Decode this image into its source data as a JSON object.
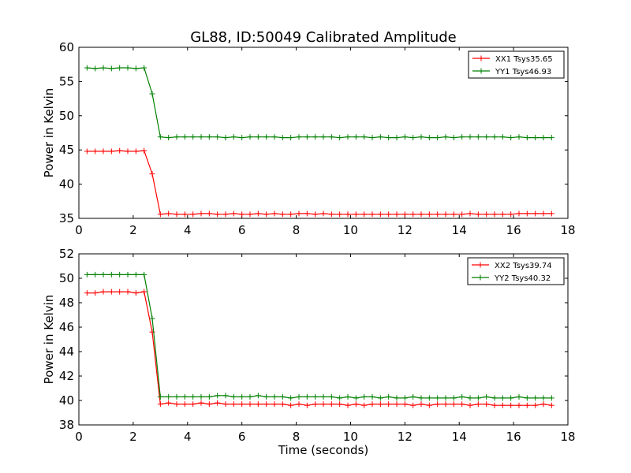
{
  "title": "GL88, ID:50049 Calibrated Amplitude",
  "chart_data": [
    {
      "type": "line",
      "ylabel": "Power in Kelvin",
      "xlabel": "",
      "xlim": [
        0,
        18
      ],
      "ylim": [
        35,
        60
      ],
      "xticks": [
        0,
        2,
        4,
        6,
        8,
        10,
        12,
        14,
        16,
        18
      ],
      "yticks": [
        35,
        40,
        45,
        50,
        55,
        60
      ],
      "legend_position": "top-right",
      "x": [
        0.3,
        0.6,
        0.9,
        1.2,
        1.5,
        1.8,
        2.1,
        2.4,
        2.7,
        3.0,
        3.3,
        3.6,
        3.9,
        4.2,
        4.5,
        4.8,
        5.1,
        5.4,
        5.7,
        6.0,
        6.3,
        6.6,
        6.9,
        7.2,
        7.5,
        7.8,
        8.1,
        8.4,
        8.7,
        9.0,
        9.3,
        9.6,
        9.9,
        10.2,
        10.5,
        10.8,
        11.1,
        11.4,
        11.7,
        12.0,
        12.3,
        12.6,
        12.9,
        13.2,
        13.5,
        13.8,
        14.1,
        14.4,
        14.7,
        15.0,
        15.3,
        15.6,
        15.9,
        16.2,
        16.5,
        16.8,
        17.1,
        17.4
      ],
      "series": [
        {
          "name": "XX1 Tsys35.65",
          "color": "#ff0000",
          "values": [
            44.8,
            44.8,
            44.8,
            44.8,
            44.9,
            44.8,
            44.8,
            44.9,
            41.5,
            35.6,
            35.7,
            35.6,
            35.6,
            35.6,
            35.7,
            35.7,
            35.6,
            35.6,
            35.7,
            35.6,
            35.6,
            35.7,
            35.6,
            35.7,
            35.6,
            35.6,
            35.7,
            35.7,
            35.6,
            35.7,
            35.6,
            35.6,
            35.6,
            35.6,
            35.6,
            35.6,
            35.6,
            35.6,
            35.6,
            35.6,
            35.6,
            35.6,
            35.6,
            35.6,
            35.6,
            35.6,
            35.6,
            35.7,
            35.6,
            35.6,
            35.6,
            35.6,
            35.6,
            35.7,
            35.7,
            35.7,
            35.7,
            35.7
          ]
        },
        {
          "name": "YY1 Tsys46.93",
          "color": "#008000",
          "values": [
            57.0,
            56.9,
            57.0,
            56.9,
            57.0,
            57.0,
            56.9,
            57.0,
            53.2,
            46.9,
            46.8,
            46.9,
            46.9,
            46.9,
            46.9,
            46.9,
            46.9,
            46.8,
            46.9,
            46.8,
            46.9,
            46.9,
            46.9,
            46.9,
            46.8,
            46.8,
            46.9,
            46.9,
            46.9,
            46.9,
            46.9,
            46.8,
            46.9,
            46.9,
            46.9,
            46.8,
            46.9,
            46.8,
            46.8,
            46.9,
            46.8,
            46.9,
            46.8,
            46.8,
            46.9,
            46.8,
            46.9,
            46.9,
            46.9,
            46.9,
            46.9,
            46.9,
            46.8,
            46.9,
            46.8,
            46.8,
            46.8,
            46.8
          ]
        }
      ]
    },
    {
      "type": "line",
      "ylabel": "Power in Kelvin",
      "xlabel": "Time (seconds)",
      "xlim": [
        0,
        18
      ],
      "ylim": [
        38,
        52
      ],
      "xticks": [
        0,
        2,
        4,
        6,
        8,
        10,
        12,
        14,
        16,
        18
      ],
      "yticks": [
        38,
        40,
        42,
        44,
        46,
        48,
        50,
        52
      ],
      "legend_position": "top-right",
      "x": [
        0.3,
        0.6,
        0.9,
        1.2,
        1.5,
        1.8,
        2.1,
        2.4,
        2.7,
        3.0,
        3.3,
        3.6,
        3.9,
        4.2,
        4.5,
        4.8,
        5.1,
        5.4,
        5.7,
        6.0,
        6.3,
        6.6,
        6.9,
        7.2,
        7.5,
        7.8,
        8.1,
        8.4,
        8.7,
        9.0,
        9.3,
        9.6,
        9.9,
        10.2,
        10.5,
        10.8,
        11.1,
        11.4,
        11.7,
        12.0,
        12.3,
        12.6,
        12.9,
        13.2,
        13.5,
        13.8,
        14.1,
        14.4,
        14.7,
        15.0,
        15.3,
        15.6,
        15.9,
        16.2,
        16.5,
        16.8,
        17.1,
        17.4
      ],
      "series": [
        {
          "name": "XX2 Tsys39.74",
          "color": "#ff0000",
          "values": [
            48.8,
            48.8,
            48.9,
            48.9,
            48.9,
            48.9,
            48.8,
            48.9,
            45.6,
            39.7,
            39.8,
            39.7,
            39.7,
            39.7,
            39.8,
            39.7,
            39.8,
            39.7,
            39.7,
            39.7,
            39.7,
            39.7,
            39.7,
            39.7,
            39.7,
            39.6,
            39.7,
            39.6,
            39.7,
            39.7,
            39.7,
            39.7,
            39.6,
            39.7,
            39.6,
            39.7,
            39.7,
            39.7,
            39.7,
            39.7,
            39.6,
            39.7,
            39.6,
            39.7,
            39.7,
            39.7,
            39.7,
            39.6,
            39.7,
            39.7,
            39.6,
            39.6,
            39.6,
            39.6,
            39.6,
            39.6,
            39.7,
            39.6
          ]
        },
        {
          "name": "YY2 Tsys40.32",
          "color": "#008000",
          "values": [
            50.3,
            50.3,
            50.3,
            50.3,
            50.3,
            50.3,
            50.3,
            50.3,
            46.7,
            40.3,
            40.3,
            40.3,
            40.3,
            40.3,
            40.3,
            40.3,
            40.4,
            40.4,
            40.3,
            40.3,
            40.3,
            40.4,
            40.3,
            40.3,
            40.3,
            40.2,
            40.3,
            40.3,
            40.3,
            40.3,
            40.3,
            40.2,
            40.3,
            40.2,
            40.3,
            40.3,
            40.2,
            40.3,
            40.2,
            40.2,
            40.3,
            40.2,
            40.2,
            40.2,
            40.2,
            40.2,
            40.3,
            40.2,
            40.2,
            40.3,
            40.2,
            40.2,
            40.2,
            40.3,
            40.2,
            40.2,
            40.2,
            40.2
          ]
        }
      ]
    }
  ]
}
